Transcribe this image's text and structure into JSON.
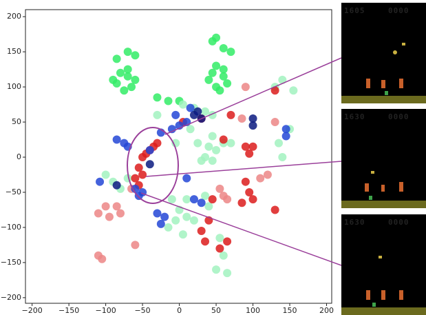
{
  "chart_data": {
    "type": "scatter",
    "xlim": [
      -209,
      207
    ],
    "ylim": [
      -208,
      210
    ],
    "xticks": [
      {
        "value": -200,
        "label": "−200"
      },
      {
        "value": -150,
        "label": "−150"
      },
      {
        "value": -100,
        "label": "−100"
      },
      {
        "value": -50,
        "label": "−50"
      },
      0,
      50,
      100,
      150,
      200
    ],
    "yticks": [
      {
        "value": -200,
        "label": "−200"
      },
      {
        "value": -150,
        "label": "−150"
      },
      {
        "value": -100,
        "label": "−100"
      },
      {
        "value": -50,
        "label": "−50"
      },
      0,
      50,
      100,
      150,
      200
    ],
    "series": [
      {
        "color": "#33ec66",
        "x": [
          -80,
          -70,
          -85,
          -65,
          -75,
          -70,
          -90,
          -60,
          -85,
          -60,
          -70,
          45,
          60,
          50,
          65,
          55,
          40,
          60,
          50,
          45,
          50,
          70,
          60,
          -30,
          -15,
          0
        ],
        "values": [
          120,
          115,
          105,
          100,
          95,
          125,
          110,
          110,
          140,
          145,
          150,
          120,
          115,
          100,
          105,
          95,
          110,
          125,
          130,
          165,
          170,
          150,
          155,
          85,
          80,
          80
        ]
      },
      {
        "color": "#a2f2c0",
        "x": [
          5,
          20,
          35,
          45,
          25,
          40,
          35,
          50,
          30,
          60,
          45,
          15,
          70,
          140,
          135,
          150,
          140,
          130,
          155,
          -100,
          -90,
          -80,
          -10,
          0,
          -5,
          10,
          -15,
          5,
          20,
          40,
          35,
          55,
          60,
          65,
          50,
          -5,
          -30,
          -70,
          45,
          10
        ],
        "values": [
          75,
          70,
          65,
          60,
          20,
          15,
          0,
          10,
          -5,
          20,
          30,
          40,
          20,
          0,
          20,
          40,
          110,
          100,
          95,
          -25,
          -35,
          -45,
          -60,
          -75,
          -90,
          -85,
          -100,
          -110,
          -90,
          -70,
          -55,
          -115,
          -140,
          -165,
          -160,
          20,
          60,
          -30,
          -5,
          -60
        ]
      },
      {
        "color": "#dc1c1c",
        "x": [
          -30,
          -40,
          -50,
          -55,
          -60,
          -45,
          -35,
          -50,
          90,
          100,
          95,
          90,
          95,
          100,
          85,
          40,
          30,
          35,
          55,
          65,
          45,
          60,
          130,
          130,
          5,
          30,
          70,
          -55
        ],
        "values": [
          20,
          10,
          0,
          -15,
          -30,
          5,
          15,
          -25,
          15,
          15,
          5,
          -35,
          -50,
          -60,
          -65,
          -90,
          -105,
          -120,
          -130,
          -120,
          -60,
          25,
          -75,
          95,
          50,
          55,
          60,
          -40
        ]
      },
      {
        "color": "#ec8686",
        "x": [
          -100,
          -85,
          -95,
          -110,
          -80,
          -105,
          -110,
          55,
          65,
          60,
          110,
          120,
          90,
          130,
          -60,
          85,
          -65
        ],
        "values": [
          -70,
          -70,
          -85,
          -80,
          -80,
          -145,
          -140,
          -45,
          -60,
          -55,
          -30,
          -25,
          100,
          50,
          -125,
          55,
          -45
        ]
      },
      {
        "color": "#2346d6",
        "x": [
          -75,
          -85,
          -70,
          -60,
          -50,
          -55,
          -40,
          -25,
          -10,
          0,
          10,
          145,
          145,
          20,
          30,
          -25,
          -20,
          -30,
          10,
          -5,
          -108,
          15
        ],
        "values": [
          20,
          25,
          15,
          -45,
          -50,
          -55,
          10,
          35,
          40,
          45,
          50,
          40,
          30,
          -60,
          -65,
          -95,
          -85,
          -80,
          -30,
          60,
          -35,
          70
        ]
      },
      {
        "color": "#0b1a80",
        "x": [
          20,
          30,
          25,
          100,
          100,
          -85,
          -40
        ],
        "values": [
          60,
          55,
          65,
          45,
          55,
          -40,
          -10
        ]
      }
    ]
  },
  "panels": [
    {
      "score": "1605",
      "lives": "0000"
    },
    {
      "score": "1630",
      "lives": "0000"
    },
    {
      "score": "1630",
      "lives": "0000"
    }
  ]
}
